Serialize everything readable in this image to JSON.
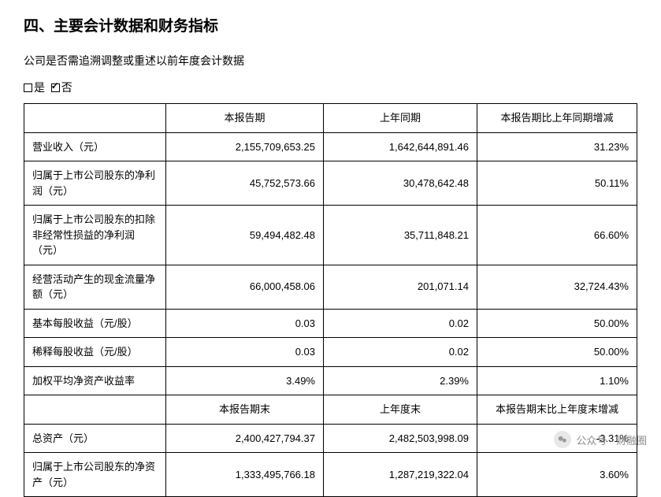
{
  "heading": "四、主要会计数据和财务指标",
  "subtext": "公司是否需追溯调整或重述以前年度会计数据",
  "option_yes": "是",
  "option_no": "否",
  "section1": {
    "headers": [
      "",
      "本报告期",
      "上年同期",
      "本报告期比上年同期增减"
    ],
    "rows": [
      {
        "label": "营业收入（元）",
        "c1": "2,155,709,653.25",
        "c2": "1,642,644,891.46",
        "c3": "31.23%"
      },
      {
        "label": "归属于上市公司股东的净利润（元）",
        "c1": "45,752,573.66",
        "c2": "30,478,642.48",
        "c3": "50.11%"
      },
      {
        "label": "归属于上市公司股东的扣除非经常性损益的净利润（元）",
        "c1": "59,494,482.48",
        "c2": "35,711,848.21",
        "c3": "66.60%"
      },
      {
        "label": "经营活动产生的现金流量净额（元）",
        "c1": "66,000,458.06",
        "c2": "201,071.14",
        "c3": "32,724.43%"
      },
      {
        "label": "基本每股收益（元/股）",
        "c1": "0.03",
        "c2": "0.02",
        "c3": "50.00%"
      },
      {
        "label": "稀释每股收益（元/股）",
        "c1": "0.03",
        "c2": "0.02",
        "c3": "50.00%"
      },
      {
        "label": "加权平均净资产收益率",
        "c1": "3.49%",
        "c2": "2.39%",
        "c3": "1.10%"
      }
    ]
  },
  "section2": {
    "headers": [
      "",
      "本报告期末",
      "上年度末",
      "本报告期末比上年度末增减"
    ],
    "rows": [
      {
        "label": "总资产（元）",
        "c1": "2,400,427,794.37",
        "c2": "2,482,503,998.09",
        "c3": "-3.31%"
      },
      {
        "label": "归属于上市公司股东的净资产（元）",
        "c1": "1,333,495,766.18",
        "c2": "1,287,219,322.04",
        "c3": "3.60%"
      }
    ]
  },
  "footer": {
    "text": "公众号 · 财融圈"
  }
}
